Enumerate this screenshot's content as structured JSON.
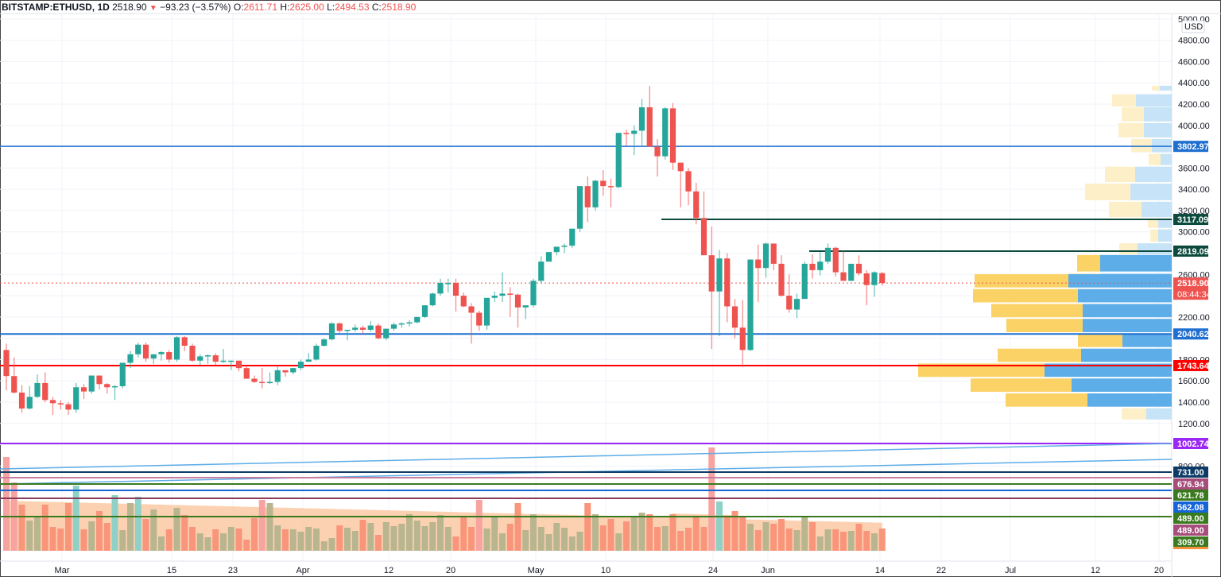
{
  "header": {
    "symbol": "BITSTAMP:ETHUSD, 1D",
    "last": "2518.90",
    "change": "−93.23 (−3.57%)",
    "open_label": "O:",
    "open": "2611.71",
    "high_label": "H:",
    "high": "2625.00",
    "low_label": "L:",
    "low": "2494.53",
    "close_label": "C:",
    "close": "2518.90"
  },
  "price_axis": {
    "currency": "USD",
    "ticks": [
      "5000.00",
      "4800.00",
      "4600.00",
      "4400.00",
      "4200.00",
      "4000.00",
      "3600.00",
      "3400.00",
      "3200.00",
      "3000.00",
      "2600.00",
      "2200.00",
      "1800.00",
      "1600.00",
      "1400.00",
      "1200.00",
      "800.00"
    ],
    "countdown": "08:44:34"
  },
  "time_axis": {
    "ticks": [
      "Mar",
      "15",
      "23",
      "Apr",
      "12",
      "20",
      "May",
      "10",
      "24",
      "Jun",
      "14",
      "22",
      "Jul",
      "12",
      "20"
    ]
  },
  "price_labels": [
    {
      "value": "3802.97",
      "color": "#1e6fd0"
    },
    {
      "value": "3117.09",
      "color": "#0b4a3c"
    },
    {
      "value": "2819.09",
      "color": "#0b4a3c"
    },
    {
      "value": "2518.90",
      "color": "#ef5350"
    },
    {
      "value": "2040.62",
      "color": "#1e6fd0"
    },
    {
      "value": "1743.64",
      "color": "#ff0000"
    },
    {
      "value": "1002.74",
      "color": "#9c27f5"
    },
    {
      "value": "731.00",
      "color": "#0d3b66"
    },
    {
      "value": "676.94",
      "color": "#a74d7c"
    },
    {
      "value": "621.78",
      "color": "#3a7a1e"
    },
    {
      "value": "562.08",
      "color": "#1565d8"
    },
    {
      "value": "489.00",
      "color": "#3a7a1e"
    },
    {
      "value": "489.00",
      "color": "#a74d7c"
    },
    {
      "value": "309.70",
      "color": "#3a7a1e"
    }
  ],
  "colors": {
    "up": "#26a69a",
    "down": "#ef5350",
    "vol_up": "#b9b58f",
    "vol_down": "#f9957a",
    "vpvr_up": "#fbd266",
    "vpvr_down": "#5dade8",
    "vpvr_up_light": "#fdefc8",
    "vpvr_down_light": "#c6e3f7"
  },
  "chart_data": {
    "type": "candlestick",
    "title": "BITSTAMP:ETHUSD, 1D",
    "ylabel": "USD",
    "ylim": [
      700,
      5000
    ],
    "x_start": "Feb 24",
    "ohlc": [
      [
        1890,
        1950,
        1510,
        1645
      ],
      [
        1645,
        1820,
        1480,
        1490
      ],
      [
        1490,
        1560,
        1300,
        1340
      ],
      [
        1340,
        1550,
        1330,
        1450
      ],
      [
        1450,
        1660,
        1440,
        1580
      ],
      [
        1580,
        1680,
        1400,
        1420
      ],
      [
        1420,
        1450,
        1280,
        1390
      ],
      [
        1390,
        1420,
        1330,
        1380
      ],
      [
        1380,
        1400,
        1280,
        1330
      ],
      [
        1330,
        1580,
        1300,
        1540
      ],
      [
        1540,
        1570,
        1430,
        1500
      ],
      [
        1500,
        1640,
        1480,
        1650
      ],
      [
        1650,
        1650,
        1520,
        1570
      ],
      [
        1570,
        1580,
        1480,
        1540
      ],
      [
        1540,
        1560,
        1420,
        1550
      ],
      [
        1550,
        1720,
        1530,
        1770
      ],
      [
        1770,
        1880,
        1720,
        1850
      ],
      [
        1850,
        1960,
        1820,
        1940
      ],
      [
        1940,
        1960,
        1780,
        1810
      ],
      [
        1810,
        1830,
        1760,
        1850
      ],
      [
        1850,
        1880,
        1790,
        1870
      ],
      [
        1870,
        1890,
        1770,
        1800
      ],
      [
        1800,
        2020,
        1780,
        2010
      ],
      [
        2010,
        2020,
        1880,
        1930
      ],
      [
        1930,
        1950,
        1780,
        1790
      ],
      [
        1790,
        1850,
        1750,
        1830
      ],
      [
        1830,
        1850,
        1760,
        1840
      ],
      [
        1840,
        1860,
        1750,
        1780
      ],
      [
        1780,
        1900,
        1770,
        1790
      ],
      [
        1790,
        1790,
        1700,
        1790
      ],
      [
        1790,
        1790,
        1690,
        1720
      ],
      [
        1720,
        1740,
        1620,
        1620
      ],
      [
        1620,
        1650,
        1580,
        1590
      ],
      [
        1590,
        1720,
        1530,
        1580
      ],
      [
        1580,
        1680,
        1570,
        1590
      ],
      [
        1590,
        1740,
        1560,
        1700
      ],
      [
        1700,
        1700,
        1640,
        1680
      ],
      [
        1680,
        1720,
        1660,
        1720
      ],
      [
        1720,
        1800,
        1700,
        1780
      ],
      [
        1780,
        1860,
        1780,
        1800
      ],
      [
        1800,
        1950,
        1790,
        1930
      ],
      [
        1930,
        2000,
        1920,
        1990
      ],
      [
        1990,
        2150,
        1980,
        2140
      ],
      [
        2140,
        2150,
        2050,
        2070
      ],
      [
        2070,
        2080,
        1980,
        2080
      ],
      [
        2080,
        2130,
        2060,
        2100
      ],
      [
        2100,
        2120,
        2040,
        2080
      ],
      [
        2080,
        2160,
        2060,
        2120
      ],
      [
        2120,
        2140,
        1990,
        2000
      ],
      [
        2000,
        2080,
        1980,
        2090
      ],
      [
        2090,
        2150,
        2070,
        2130
      ],
      [
        2130,
        2150,
        2100,
        2140
      ],
      [
        2140,
        2170,
        2110,
        2150
      ],
      [
        2150,
        2200,
        2140,
        2200
      ],
      [
        2200,
        2300,
        2190,
        2310
      ],
      [
        2310,
        2430,
        2300,
        2420
      ],
      [
        2420,
        2560,
        2400,
        2520
      ],
      [
        2520,
        2560,
        2430,
        2520
      ],
      [
        2520,
        2560,
        2250,
        2400
      ],
      [
        2400,
        2430,
        2290,
        2300
      ],
      [
        2300,
        2330,
        1950,
        2240
      ],
      [
        2240,
        2260,
        2070,
        2120
      ],
      [
        2120,
        2360,
        2080,
        2380
      ],
      [
        2380,
        2440,
        2340,
        2400
      ],
      [
        2400,
        2620,
        2340,
        2420
      ],
      [
        2420,
        2480,
        2200,
        2410
      ],
      [
        2410,
        2420,
        2100,
        2290
      ],
      [
        2290,
        2300,
        2180,
        2310
      ],
      [
        2310,
        2560,
        2290,
        2540
      ],
      [
        2540,
        2770,
        2520,
        2720
      ],
      [
        2720,
        2800,
        2720,
        2810
      ],
      [
        2810,
        2860,
        2780,
        2860
      ],
      [
        2860,
        2890,
        2800,
        2870
      ],
      [
        2870,
        3030,
        2850,
        3030
      ],
      [
        3030,
        3240,
        3000,
        3430
      ],
      [
        3430,
        3520,
        3090,
        3230
      ],
      [
        3230,
        3490,
        3200,
        3480
      ],
      [
        3480,
        3580,
        3340,
        3430
      ],
      [
        3430,
        3500,
        3230,
        3420
      ],
      [
        3420,
        3780,
        3410,
        3930
      ],
      [
        3930,
        3960,
        3810,
        3920
      ],
      [
        3920,
        4000,
        3720,
        3950
      ],
      [
        3950,
        4250,
        3800,
        4170
      ],
      [
        4170,
        4370,
        3890,
        3800
      ],
      [
        3800,
        3870,
        3520,
        3710
      ],
      [
        3710,
        4170,
        3680,
        4160
      ],
      [
        4160,
        4210,
        3580,
        3650
      ],
      [
        3650,
        3650,
        3230,
        3570
      ],
      [
        3570,
        3600,
        3250,
        3380
      ],
      [
        3380,
        3460,
        3070,
        3130
      ],
      [
        3130,
        3380,
        2870,
        2780
      ],
      [
        2780,
        3050,
        1900,
        2440
      ],
      [
        2440,
        2830,
        2020,
        2750
      ],
      [
        2750,
        2800,
        2150,
        2300
      ],
      [
        2300,
        2370,
        2000,
        2100
      ],
      [
        2100,
        2360,
        1730,
        1890
      ],
      [
        1890,
        2660,
        1880,
        2740
      ],
      [
        2740,
        2880,
        2340,
        2660
      ],
      [
        2660,
        2900,
        2570,
        2890
      ],
      [
        2890,
        2890,
        2640,
        2700
      ],
      [
        2700,
        2780,
        2390,
        2400
      ],
      [
        2400,
        2600,
        2240,
        2270
      ],
      [
        2270,
        2420,
        2190,
        2370
      ],
      [
        2370,
        2720,
        2410,
        2700
      ],
      [
        2700,
        2790,
        2560,
        2640
      ],
      [
        2640,
        2810,
        2590,
        2720
      ],
      [
        2720,
        2890,
        2700,
        2850
      ],
      [
        2850,
        2860,
        2580,
        2620
      ],
      [
        2620,
        2820,
        2580,
        2540
      ],
      [
        2540,
        2640,
        2590,
        2700
      ],
      [
        2700,
        2780,
        2590,
        2610
      ],
      [
        2610,
        2640,
        2310,
        2500
      ],
      [
        2500,
        2630,
        2390,
        2620
      ],
      [
        2611.71,
        2625,
        2494.53,
        2518.9
      ]
    ],
    "horizontal_levels": [
      3802.97,
      3117.09,
      2819.09,
      2040.62,
      1743.64,
      1002.74,
      731.0,
      676.94,
      621.78,
      562.08,
      489.0,
      489.0,
      309.7
    ],
    "last_price": 2518.9,
    "volume_profile": "visible range volume profile on right side (up=yellow, down=blue)"
  }
}
